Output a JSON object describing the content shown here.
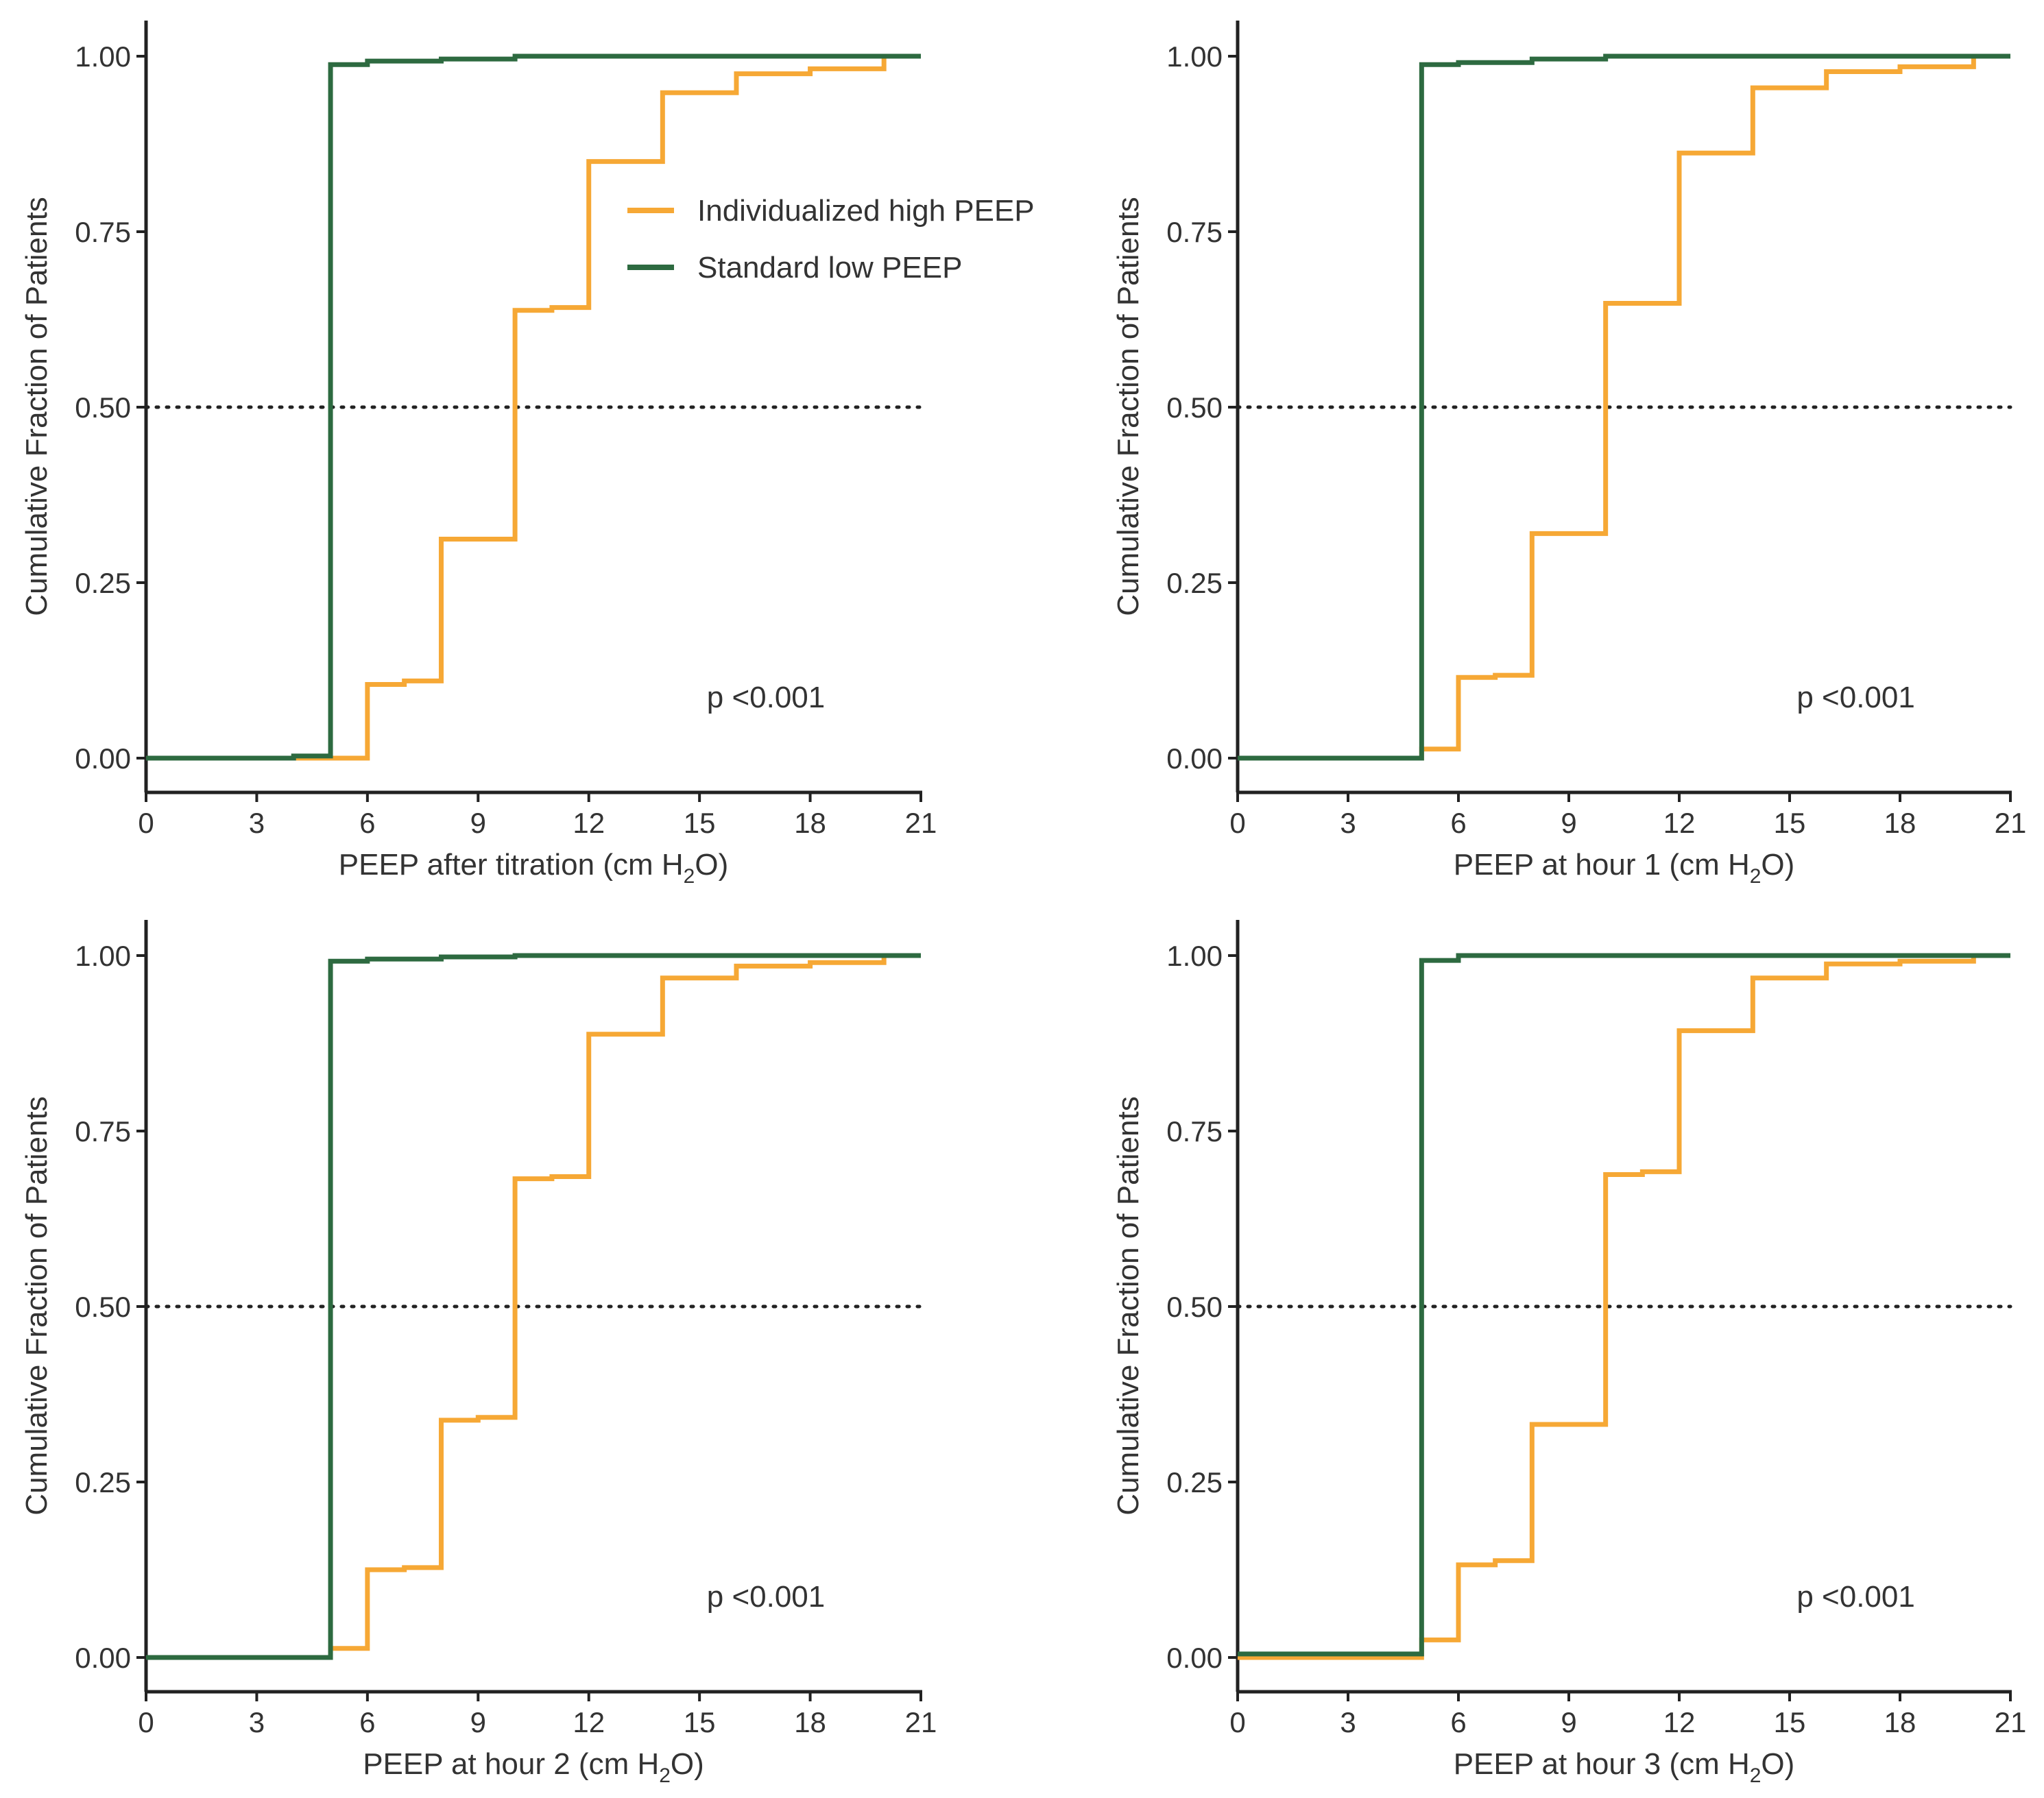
{
  "colors": {
    "individualized": "#F6A835",
    "standard": "#2D6A40",
    "axis": "#222222",
    "text": "#333333",
    "reference_line": "#222222"
  },
  "chart_data": [
    {
      "type": "line",
      "step": true,
      "xlabel_main": "PEEP after titration (cm H",
      "xlabel_sub": "2",
      "xlabel_tail": "O)",
      "ylabel": "Cumulative Fraction of Patients",
      "xlim": [
        0,
        21
      ],
      "ylim": [
        0,
        1
      ],
      "xticks": [
        0,
        3,
        6,
        9,
        12,
        15,
        18,
        21
      ],
      "xtick_labels": [
        "0",
        "3",
        "6",
        "9",
        "12",
        "15",
        "18",
        "21"
      ],
      "yticks": [
        0,
        0.25,
        0.5,
        0.75,
        1
      ],
      "ytick_labels": [
        "0.00",
        "0.25",
        "0.50",
        "0.75",
        "1.00"
      ],
      "reference_y": 0.5,
      "annotation": "p <0.001",
      "legend": true,
      "legend_position": "upper-right of plot area",
      "series": [
        {
          "name": "Individualized high PEEP",
          "color": "#F6A835",
          "x": [
            0,
            4,
            5,
            6,
            7,
            8,
            10,
            11,
            12,
            14,
            16,
            18,
            20
          ],
          "y": [
            0.0,
            0.0,
            0.0,
            0.105,
            0.11,
            0.312,
            0.638,
            0.642,
            0.85,
            0.948,
            0.975,
            0.982,
            1.0
          ]
        },
        {
          "name": "Standard low PEEP",
          "color": "#2D6A40",
          "x": [
            0,
            4,
            5,
            6,
            8,
            10,
            21
          ],
          "y": [
            0.0,
            0.003,
            0.988,
            0.993,
            0.996,
            1.0,
            1.0
          ]
        }
      ]
    },
    {
      "type": "line",
      "step": true,
      "xlabel_main": "PEEP at hour 1 (cm H",
      "xlabel_sub": "2",
      "xlabel_tail": "O)",
      "ylabel": "Cumulative Fraction of Patients",
      "xlim": [
        0,
        21
      ],
      "ylim": [
        0,
        1
      ],
      "xticks": [
        0,
        3,
        6,
        9,
        12,
        15,
        18,
        21
      ],
      "xtick_labels": [
        "0",
        "3",
        "6",
        "9",
        "12",
        "15",
        "18",
        "21"
      ],
      "yticks": [
        0,
        0.25,
        0.5,
        0.75,
        1
      ],
      "ytick_labels": [
        "0.00",
        "0.25",
        "0.50",
        "0.75",
        "1.00"
      ],
      "reference_y": 0.5,
      "annotation": "p <0.001",
      "legend": false,
      "series": [
        {
          "name": "Individualized high PEEP",
          "color": "#F6A835",
          "x": [
            0,
            5,
            6,
            7,
            8,
            10,
            12,
            14,
            16,
            18,
            20
          ],
          "y": [
            0.0,
            0.013,
            0.115,
            0.118,
            0.32,
            0.648,
            0.862,
            0.955,
            0.978,
            0.985,
            1.0
          ]
        },
        {
          "name": "Standard low PEEP",
          "color": "#2D6A40",
          "x": [
            0,
            5,
            6,
            8,
            10,
            21
          ],
          "y": [
            0.0,
            0.988,
            0.991,
            0.996,
            1.0,
            1.0
          ]
        }
      ]
    },
    {
      "type": "line",
      "step": true,
      "xlabel_main": "PEEP at hour 2 (cm H",
      "xlabel_sub": "2",
      "xlabel_tail": "O)",
      "ylabel": "Cumulative Fraction of Patients",
      "xlim": [
        0,
        21
      ],
      "ylim": [
        0,
        1
      ],
      "xticks": [
        0,
        3,
        6,
        9,
        12,
        15,
        18,
        21
      ],
      "xtick_labels": [
        "0",
        "3",
        "6",
        "9",
        "12",
        "15",
        "18",
        "21"
      ],
      "yticks": [
        0,
        0.25,
        0.5,
        0.75,
        1
      ],
      "ytick_labels": [
        "0.00",
        "0.25",
        "0.50",
        "0.75",
        "1.00"
      ],
      "reference_y": 0.5,
      "annotation": "p <0.001",
      "legend": false,
      "series": [
        {
          "name": "Individualized high PEEP",
          "color": "#F6A835",
          "x": [
            0,
            5,
            6,
            7,
            8,
            9,
            10,
            11,
            12,
            14,
            16,
            18,
            20
          ],
          "y": [
            0.0,
            0.013,
            0.125,
            0.128,
            0.338,
            0.342,
            0.682,
            0.685,
            0.888,
            0.968,
            0.985,
            0.99,
            1.0
          ]
        },
        {
          "name": "Standard low PEEP",
          "color": "#2D6A40",
          "x": [
            0,
            5,
            6,
            8,
            10,
            21
          ],
          "y": [
            0.0,
            0.992,
            0.995,
            0.998,
            1.0,
            1.0
          ]
        }
      ]
    },
    {
      "type": "line",
      "step": true,
      "xlabel_main": "PEEP at hour 3 (cm H",
      "xlabel_sub": "2",
      "xlabel_tail": "O)",
      "ylabel": "Cumulative Fraction of Patients",
      "xlim": [
        0,
        21
      ],
      "ylim": [
        0,
        1
      ],
      "xticks": [
        0,
        3,
        6,
        9,
        12,
        15,
        18,
        21
      ],
      "xtick_labels": [
        "0",
        "3",
        "6",
        "9",
        "12",
        "15",
        "18",
        "21"
      ],
      "yticks": [
        0,
        0.25,
        0.5,
        0.75,
        1
      ],
      "ytick_labels": [
        "0.00",
        "0.25",
        "0.50",
        "0.75",
        "1.00"
      ],
      "reference_y": 0.5,
      "annotation": "p <0.001",
      "legend": false,
      "series": [
        {
          "name": "Individualized high PEEP",
          "color": "#F6A835",
          "x": [
            0,
            5,
            6,
            7,
            8,
            10,
            11,
            12,
            14,
            16,
            18,
            20
          ],
          "y": [
            0.0,
            0.025,
            0.132,
            0.138,
            0.332,
            0.688,
            0.692,
            0.893,
            0.968,
            0.988,
            0.992,
            1.0
          ]
        },
        {
          "name": "Standard low PEEP",
          "color": "#2D6A40",
          "x": [
            0,
            5,
            6,
            21
          ],
          "y": [
            0.005,
            0.993,
            1.0,
            1.0
          ]
        }
      ]
    }
  ]
}
